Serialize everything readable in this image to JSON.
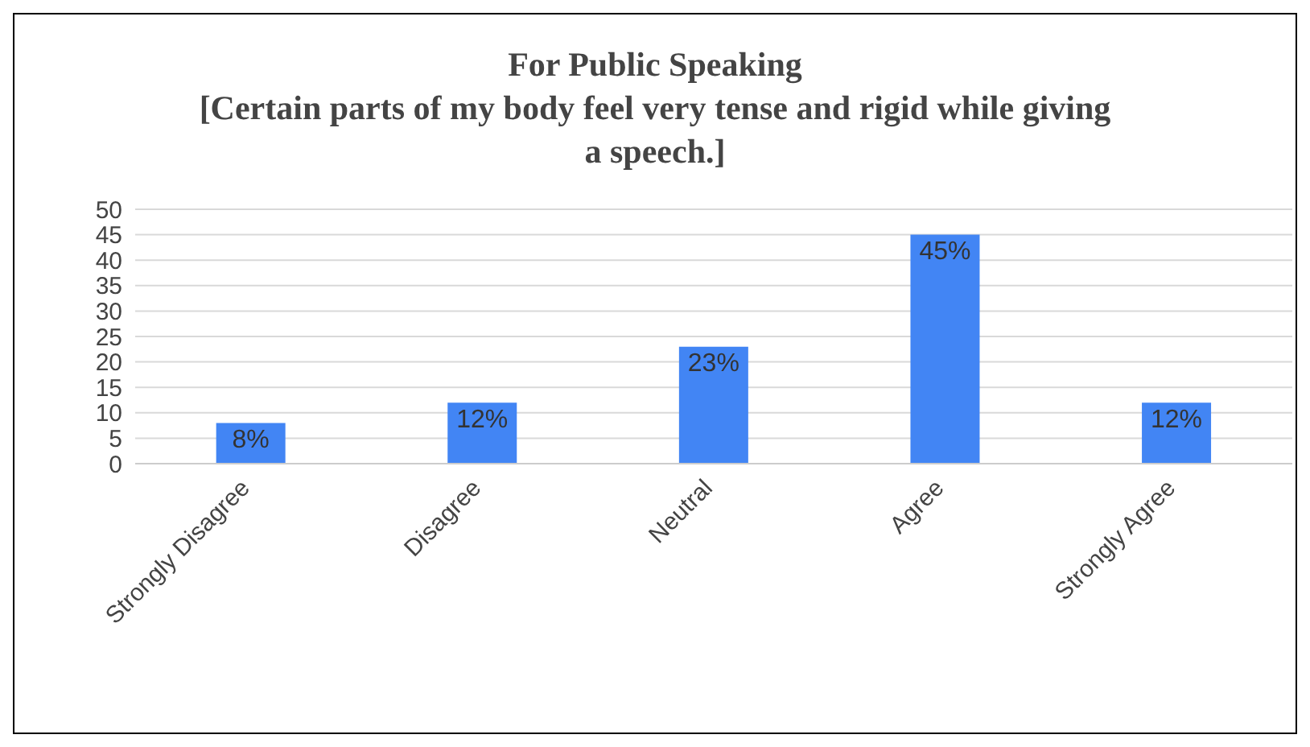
{
  "chart_data": {
    "type": "bar",
    "title": "For Public Speaking",
    "subtitle": "[Certain parts of my body feel very tense and rigid while giving a speech.]",
    "categories": [
      "Strongly Disagree",
      "Disagree",
      "Neutral",
      "Agree",
      "Strongly Agree"
    ],
    "values": [
      8,
      12,
      23,
      45,
      12
    ],
    "value_labels": [
      "8%",
      "12%",
      "23%",
      "45%",
      "12%"
    ],
    "color": "#4285f4",
    "ylim": [
      0,
      50
    ],
    "yticks": [
      0,
      5,
      10,
      15,
      20,
      25,
      30,
      35,
      40,
      45,
      50
    ],
    "grid": "y",
    "legend": false
  }
}
